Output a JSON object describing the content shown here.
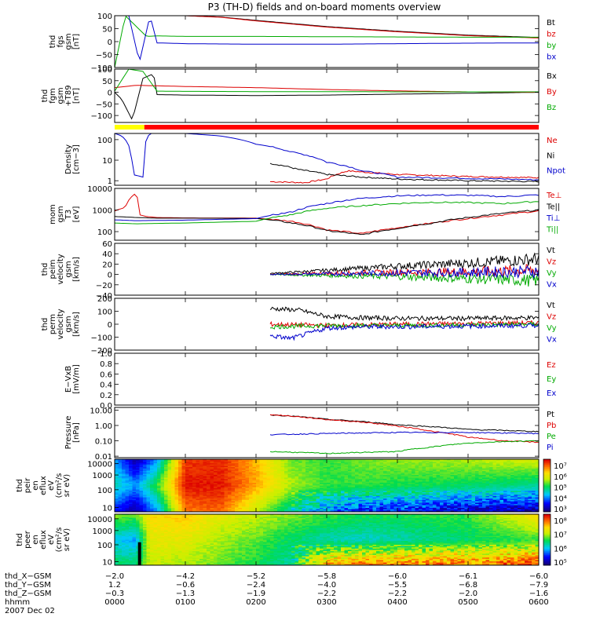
{
  "title": "P3 (TH-D) fields and on-board moments overview",
  "status_bar_colors": [
    "#ffff00",
    "#ff0000"
  ],
  "status_bar_split": 0.07,
  "chart_data": [
    {
      "type": "line",
      "id": "fgs",
      "ylabel": [
        "thd",
        "fgs",
        "gsm",
        "[nT]"
      ],
      "ylim": [
        -100,
        100
      ],
      "yticks": [
        "100",
        "50",
        "0",
        "−50",
        "−100"
      ],
      "yvals": [
        100,
        50,
        0,
        -50,
        -100
      ],
      "series": [
        {
          "name": "Bt",
          "color": "#000000",
          "x": [
            0,
            0.3,
            0.45,
            0.6,
            1,
            1.5,
            2,
            3,
            4,
            5,
            6
          ],
          "y": [
            100,
            100,
            100,
            100,
            100,
            95,
            82,
            58,
            40,
            25,
            16
          ]
        },
        {
          "name": "bz",
          "color": "#dd0000",
          "x": [
            1,
            1.5,
            2,
            3,
            4,
            5,
            6
          ],
          "y": [
            100,
            94,
            80,
            56,
            38,
            23,
            14
          ]
        },
        {
          "name": "by",
          "color": "#00aa00",
          "x": [
            0,
            0.15,
            0.3,
            0.45,
            0.6,
            1,
            2,
            3,
            4,
            5,
            6
          ],
          "y": [
            -100,
            100,
            60,
            20,
            22,
            20,
            20,
            19,
            18,
            17,
            17
          ]
        },
        {
          "name": "bx",
          "color": "#0000cc",
          "x": [
            0,
            0.2,
            0.35,
            0.5,
            0.6,
            1,
            2,
            3,
            4,
            5,
            6
          ],
          "y": [
            100,
            100,
            -80,
            100,
            -5,
            -8,
            -10,
            -10,
            -8,
            -6,
            -5
          ]
        }
      ]
    },
    {
      "type": "line",
      "id": "fgm",
      "ylabel": [
        "thd",
        "fgm",
        "gsm",
        "+T89",
        "[nT]"
      ],
      "ylim": [
        -130,
        100
      ],
      "yticks": [
        "100",
        "50",
        "0",
        "−50",
        "−100"
      ],
      "yvals": [
        100,
        50,
        0,
        -50,
        -100
      ],
      "series": [
        {
          "name": "Bx",
          "color": "#000000",
          "x": [
            0,
            0.1,
            0.25,
            0.4,
            0.55,
            0.6,
            1,
            2,
            3,
            4,
            5,
            6
          ],
          "y": [
            0,
            -30,
            -120,
            60,
            80,
            -10,
            -12,
            -14,
            -12,
            -8,
            -4,
            0
          ]
        },
        {
          "name": "By",
          "color": "#dd0000",
          "x": [
            0,
            0.3,
            0.6,
            1,
            2,
            3,
            4,
            5,
            6
          ],
          "y": [
            20,
            30,
            28,
            25,
            20,
            12,
            6,
            2,
            0
          ]
        },
        {
          "name": "Bz",
          "color": "#00aa00",
          "x": [
            0,
            0.2,
            0.4,
            0.6,
            1,
            2,
            3,
            4,
            5,
            6
          ],
          "y": [
            5,
            100,
            90,
            5,
            4,
            3,
            3,
            2,
            2,
            2
          ]
        }
      ]
    },
    {
      "type": "line",
      "id": "density",
      "log": true,
      "ylabel": [
        "Density",
        "[cm−3]"
      ],
      "ylim": [
        0.6,
        200
      ],
      "yticks": [
        "100",
        "10",
        "1"
      ],
      "yvals": [
        100,
        10,
        1
      ],
      "series": [
        {
          "name": "Ne",
          "color": "#dd0000",
          "x": [
            2.2,
            2.7,
            3.0,
            3.3,
            3.6,
            4,
            4.5,
            5,
            5.5,
            6
          ],
          "y": [
            0.9,
            0.8,
            1.2,
            3,
            2.5,
            2,
            1.8,
            1.6,
            1.5,
            1.4
          ]
        },
        {
          "name": "Ni",
          "color": "#000000",
          "x": [
            2.2,
            2.6,
            3.0,
            3.5,
            4,
            4.5,
            5,
            5.5,
            6
          ],
          "y": [
            7,
            3.5,
            2,
            1.5,
            1.2,
            1.1,
            1,
            0.95,
            0.9
          ]
        },
        {
          "name": "Npot",
          "color": "#0000cc",
          "x": [
            0,
            0.1,
            0.25,
            0.4,
            0.45,
            0.5,
            1,
            1.5,
            2,
            2.5,
            3,
            3.5,
            4,
            4.5,
            5,
            5.5,
            6
          ],
          "y": [
            200,
            150,
            2,
            1.5,
            100,
            200,
            200,
            150,
            60,
            25,
            8,
            3,
            1.5,
            1.4,
            1.3,
            1.2,
            1.1
          ]
        }
      ]
    },
    {
      "type": "line",
      "id": "mom",
      "log": true,
      "ylabel": [
        "mom",
        "gsm",
        "T3",
        "[eV]"
      ],
      "ylim": [
        40,
        10000
      ],
      "yticks": [
        "10000",
        "1000",
        "100"
      ],
      "yvals": [
        10000,
        1000,
        100
      ],
      "series": [
        {
          "name": "Te⊥",
          "color": "#dd0000",
          "x": [
            0,
            0.15,
            0.3,
            0.35,
            0.45,
            0.6,
            1,
            2,
            2.5,
            3,
            3.5,
            4,
            4.5,
            5,
            5.5,
            6
          ],
          "y": [
            900,
            1300,
            6000,
            600,
            500,
            450,
            430,
            420,
            300,
            120,
            80,
            150,
            250,
            400,
            600,
            900
          ]
        },
        {
          "name": "Te||",
          "color": "#000000",
          "x": [
            0,
            0.3,
            0.6,
            1,
            2,
            2.5,
            3,
            3.5,
            4,
            4.5,
            5,
            5.5,
            6
          ],
          "y": [
            500,
            450,
            420,
            420,
            410,
            250,
            110,
            70,
            140,
            250,
            450,
            700,
            1000
          ]
        },
        {
          "name": "Ti⊥",
          "color": "#0000cc",
          "x": [
            0,
            0.3,
            0.6,
            1,
            2,
            2.5,
            3,
            3.5,
            4,
            4.5,
            5,
            5.5,
            6
          ],
          "y": [
            350,
            320,
            330,
            340,
            400,
            800,
            2000,
            3500,
            4500,
            5000,
            4800,
            4200,
            5000
          ]
        },
        {
          "name": "Ti||",
          "color": "#00aa00",
          "x": [
            0,
            0.3,
            0.6,
            1,
            2,
            2.5,
            3,
            3.5,
            4,
            4.5,
            5,
            5.5,
            6
          ],
          "y": [
            250,
            230,
            240,
            250,
            300,
            600,
            1200,
            1600,
            2000,
            2300,
            2200,
            2000,
            2500
          ]
        }
      ]
    },
    {
      "type": "line",
      "id": "peim",
      "noise": true,
      "ylabel": [
        "thd",
        "peim",
        "velocity",
        "gsm",
        "[km/s]"
      ],
      "ylim": [
        -40,
        60
      ],
      "yticks": [
        "60",
        "40",
        "20",
        "0",
        "−20",
        "−40"
      ],
      "yvals": [
        60,
        40,
        20,
        0,
        -20,
        -40
      ],
      "series": [
        {
          "name": "Vt",
          "color": "#000000",
          "x": [
            2.2,
            3,
            4,
            5,
            6
          ],
          "y": [
            2,
            8,
            16,
            22,
            30
          ]
        },
        {
          "name": "Vz",
          "color": "#dd0000",
          "x": [
            2.2,
            3,
            4,
            5,
            6
          ],
          "y": [
            0,
            2,
            4,
            5,
            8
          ]
        },
        {
          "name": "Vy",
          "color": "#00aa00",
          "x": [
            2.2,
            3,
            4,
            5,
            6
          ],
          "y": [
            0,
            -2,
            -4,
            -8,
            -12
          ]
        },
        {
          "name": "Vx",
          "color": "#0000cc",
          "x": [
            2.2,
            3,
            4,
            5,
            6
          ],
          "y": [
            0,
            1,
            3,
            4,
            6
          ]
        }
      ]
    },
    {
      "type": "line",
      "id": "perm",
      "noise": true,
      "ylabel": [
        "thd",
        "perm",
        "velocity",
        "gsm",
        "[km/s]"
      ],
      "ylim": [
        -200,
        200
      ],
      "yticks": [
        "200",
        "100",
        "0",
        "−100",
        "−200"
      ],
      "yvals": [
        200,
        100,
        0,
        -100,
        -200
      ],
      "series": [
        {
          "name": "Vt",
          "color": "#000000",
          "x": [
            2.2,
            2.6,
            3.0,
            3.5,
            4,
            5,
            6
          ],
          "y": [
            120,
            110,
            60,
            50,
            45,
            45,
            50
          ]
        },
        {
          "name": "Vz",
          "color": "#dd0000",
          "x": [
            2.2,
            3,
            4,
            5,
            6
          ],
          "y": [
            0,
            -10,
            0,
            5,
            10
          ]
        },
        {
          "name": "Vy",
          "color": "#00aa00",
          "x": [
            2.2,
            3,
            4,
            5,
            6
          ],
          "y": [
            -20,
            -10,
            -10,
            -5,
            0
          ]
        },
        {
          "name": "Vx",
          "color": "#0000cc",
          "x": [
            2.2,
            2.5,
            3.0,
            3.5,
            4,
            5,
            6
          ],
          "y": [
            -90,
            -110,
            -30,
            -20,
            -20,
            -15,
            -10
          ]
        }
      ]
    },
    {
      "type": "line",
      "id": "efield",
      "ylabel": [
        "E−VxB",
        "[mV/m]"
      ],
      "ylim": [
        0,
        1
      ],
      "yticks": [
        "1.0",
        "0.8",
        "0.6",
        "0.4",
        "0.2",
        "0.0"
      ],
      "yvals": [
        1,
        0.8,
        0.6,
        0.4,
        0.2,
        0
      ],
      "series": [
        {
          "name": "Ez",
          "color": "#dd0000",
          "x": [],
          "y": []
        },
        {
          "name": "Ey",
          "color": "#00aa00",
          "x": [],
          "y": []
        },
        {
          "name": "Ex",
          "color": "#0000cc",
          "x": [],
          "y": []
        }
      ]
    },
    {
      "type": "line",
      "id": "pressure",
      "log": true,
      "ylabel": [
        "Pressure",
        "[nPa]"
      ],
      "ylim": [
        0.008,
        15
      ],
      "yticks": [
        "10.00",
        "1.00",
        "0.10",
        "0.01"
      ],
      "yvals": [
        10,
        1,
        0.1,
        0.01
      ],
      "series": [
        {
          "name": "Pt",
          "color": "#000000",
          "x": [
            2.2,
            3,
            4,
            5,
            6
          ],
          "y": [
            5,
            2.5,
            1.1,
            0.55,
            0.4
          ]
        },
        {
          "name": "Pb",
          "color": "#dd0000",
          "x": [
            2.2,
            3,
            4,
            4.5,
            5,
            5.5,
            6
          ],
          "y": [
            5,
            2.4,
            0.9,
            0.4,
            0.17,
            0.1,
            0.08
          ]
        },
        {
          "name": "Pe",
          "color": "#00aa00",
          "x": [
            2.2,
            3,
            4,
            4.5,
            5,
            5.5,
            6
          ],
          "y": [
            0.02,
            0.015,
            0.02,
            0.04,
            0.07,
            0.09,
            0.1
          ]
        },
        {
          "name": "Pi",
          "color": "#0000cc",
          "x": [
            2.2,
            3,
            4,
            5,
            6
          ],
          "y": [
            0.25,
            0.3,
            0.35,
            0.35,
            0.3
          ]
        }
      ]
    },
    {
      "type": "heatmap",
      "id": "peir",
      "ylabel": [
        "thd",
        "peir",
        "en",
        "eflux",
        "eV",
        "(cm²/s",
        "sr eV)"
      ],
      "yticks": [
        "10000",
        "1000",
        "100",
        "10"
      ],
      "yfrac": [
        0.08,
        0.3,
        0.58,
        0.92
      ],
      "colorbar": [
        "10⁷",
        "10⁶",
        "10⁵",
        "10⁴",
        "10³"
      ],
      "columns": [
        0,
        0.3,
        0.6,
        1,
        1.5,
        2,
        2.5,
        3,
        3.5,
        4,
        5,
        6
      ],
      "profile": [
        [
          4,
          4.5,
          3.5
        ],
        [
          3,
          4,
          3
        ],
        [
          4,
          5,
          4
        ],
        [
          6.8,
          7,
          6.5
        ],
        [
          6.9,
          7,
          6.6
        ],
        [
          6.2,
          6.3,
          5.5
        ],
        [
          5.2,
          5.4,
          4.5
        ],
        [
          5,
          5,
          4
        ],
        [
          5.2,
          5,
          3.5
        ],
        [
          5.3,
          4.9,
          3.5
        ],
        [
          5.4,
          4.8,
          3.2
        ],
        [
          5.6,
          4.6,
          3
        ]
      ]
    },
    {
      "type": "heatmap",
      "id": "peer",
      "ylabel": [
        "thd",
        "peer",
        "en",
        "eflux",
        "eV",
        "(cm²/s",
        "sr eV)"
      ],
      "yticks": [
        "10000",
        "1000",
        "100",
        "10"
      ],
      "yfrac": [
        0.09,
        0.32,
        0.6,
        0.93
      ],
      "colorbar": [
        "10⁸",
        "10⁷",
        "10⁶",
        "10⁵"
      ],
      "columns": [
        0,
        0.3,
        0.5,
        1,
        1.5,
        2,
        2.5,
        3,
        3.5,
        4,
        5,
        6
      ],
      "profile": [
        [
          6.6,
          5.8,
          6.2
        ],
        [
          6.5,
          5.6,
          6.2
        ],
        [
          7.2,
          7.0,
          6.8
        ],
        [
          7.3,
          7.0,
          6.7
        ],
        [
          7.0,
          6.7,
          6.5
        ],
        [
          6.8,
          6.5,
          6.3
        ],
        [
          6.6,
          6.2,
          6.0
        ],
        [
          6.4,
          6.0,
          7.4
        ],
        [
          6.3,
          5.9,
          7.6
        ],
        [
          6.3,
          6.0,
          7.6
        ],
        [
          6.4,
          6.2,
          7.6
        ],
        [
          7.2,
          6.4,
          7.8
        ]
      ]
    }
  ],
  "x_axis": {
    "rows": [
      {
        "label": "thd_X−GSM",
        "values": [
          "−2.0",
          "−4.2",
          "−5.2",
          "−5.8",
          "−6.0",
          "−6.1",
          "−6.0"
        ]
      },
      {
        "label": "thd_Y−GSM",
        "values": [
          "1.2",
          "−0.6",
          "−2.4",
          "−4.0",
          "−5.5",
          "−6.8",
          "−7.9"
        ]
      },
      {
        "label": "thd_Z−GSM",
        "values": [
          "−0.3",
          "−1.3",
          "−1.9",
          "−2.2",
          "−2.2",
          "−2.0",
          "−1.6"
        ]
      },
      {
        "label": "hhmm",
        "values": [
          "0000",
          "0100",
          "0200",
          "0300",
          "0400",
          "0500",
          "0600"
        ]
      }
    ],
    "date": "2007 Dec 02",
    "xlim": [
      0,
      6
    ]
  }
}
